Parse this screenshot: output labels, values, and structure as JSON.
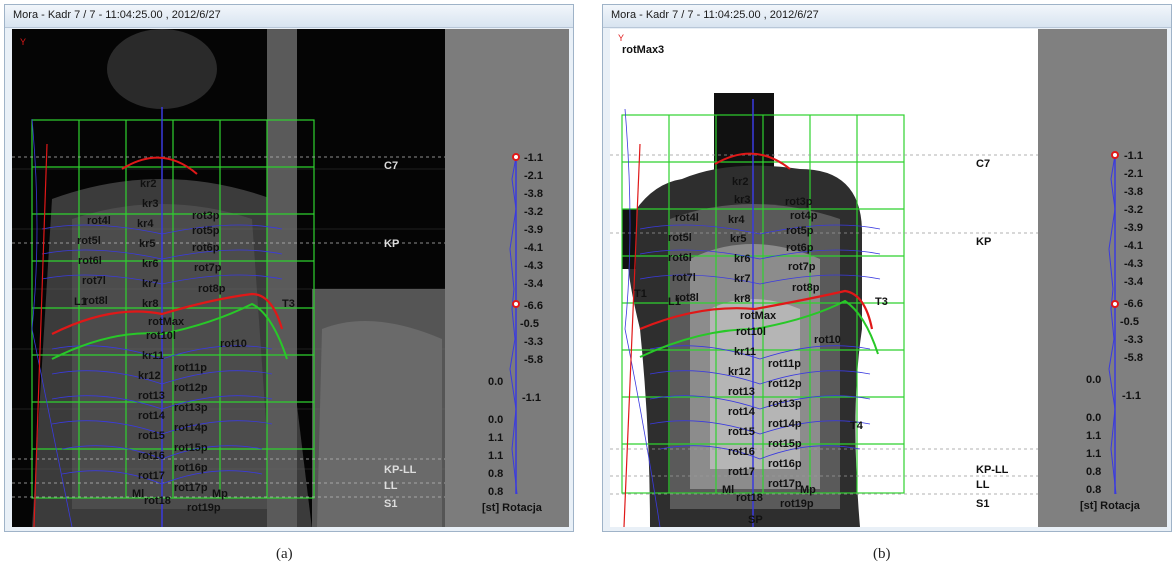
{
  "windows": [
    {
      "title": "Mora - Kadr 7 / 7 -  11:04:25.00 , 2012/6/27",
      "caption": "(a)",
      "corner_label": "Y"
    },
    {
      "title": "Mora - Kadr 7 / 7 -  11:04:25.00 , 2012/6/27",
      "caption": "(b)",
      "corner_label": "Y",
      "rot_max_label": "rotMax3"
    }
  ],
  "levels": {
    "c7": "C7",
    "kp": "KP",
    "kpll": "KP-LL",
    "ll": "LL",
    "s1": "S1"
  },
  "markers": {
    "left": [
      "rot4l",
      "rot5l",
      "rot6l",
      "rot7l",
      "rot8l",
      "rot11l",
      "rot13l",
      "rot14l",
      "rot15l",
      "rot16l",
      "rot18l",
      "rot10l"
    ],
    "right": [
      "rot3p",
      "rot4p",
      "rot5p",
      "rot6p",
      "rot7p",
      "rot8p",
      "rot10",
      "rot11p",
      "rot12p",
      "rot13p",
      "rot14p",
      "rot15p",
      "rot16p",
      "rot17p",
      "rot19p"
    ],
    "center": [
      "kr2",
      "kr3",
      "kr4",
      "kr5",
      "kr6",
      "kr7",
      "kr8",
      "rotMax",
      "rot10l",
      "kr11",
      "kr12",
      "rot13",
      "rot14",
      "rot15",
      "rot16",
      "rot17",
      "rot18",
      "rot19"
    ],
    "t1": "T1",
    "t3": "T3",
    "t4": "T4",
    "l1": "L1",
    "ml": "Ml",
    "mp": "Mp",
    "sp": "SP"
  },
  "rotation": {
    "values": [
      "-1.1",
      "-2.1",
      "-3.8",
      "-3.2",
      "-3.9",
      "-4.1",
      "-4.3",
      "-3.4",
      "-6.6",
      "-0.5",
      "-3.3",
      "-5.8",
      "0.0",
      "-1.1",
      "0.0",
      "1.1",
      "1.1",
      "0.8",
      "0.8"
    ],
    "title": "[st] Rotacja"
  },
  "colors": {
    "grid": "#2fd12f",
    "spine": "#3a3adf",
    "red_curve": "#e01818",
    "green_curve": "#28c828",
    "side_panel_a": "#7c7c7c",
    "side_panel_b": "#808080"
  }
}
